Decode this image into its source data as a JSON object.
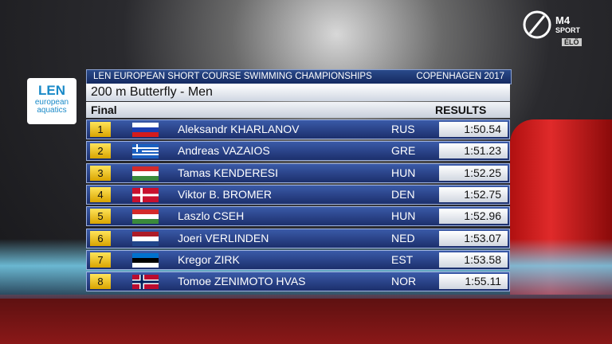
{
  "header": {
    "championship": "LEN EUROPEAN SHORT COURSE SWIMMING  CHAMPIONSHIPS",
    "location": "COPENHAGEN 2017"
  },
  "event": "200 m Butterfly - Men",
  "round": "Final",
  "results_label": "RESULTS",
  "logo": {
    "mark": "LEN",
    "line1": "european",
    "line2": "aquatics"
  },
  "broadcaster": {
    "channel": "M4",
    "sub": "SPORT",
    "live": "ÉLŐ"
  },
  "table": {
    "rows": [
      [
        "1",
        "Aleksandr KHARLANOV",
        "RUS",
        "1:50.54"
      ],
      [
        "2",
        "Andreas VAZAIOS",
        "GRE",
        "1:51.23"
      ],
      [
        "3",
        "Tamas KENDERESI",
        "HUN",
        "1:52.25"
      ],
      [
        "4",
        "Viktor B. BROMER",
        "DEN",
        "1:52.75"
      ],
      [
        "5",
        "Laszlo CSEH",
        "HUN",
        "1:52.96"
      ],
      [
        "6",
        "Joeri VERLINDEN",
        "NED",
        "1:53.07"
      ],
      [
        "7",
        "Kregor ZIRK",
        "EST",
        "1:53.58"
      ],
      [
        "8",
        "Tomoe ZENIMOTO HVAS",
        "NOR",
        "1:55.11"
      ]
    ]
  }
}
